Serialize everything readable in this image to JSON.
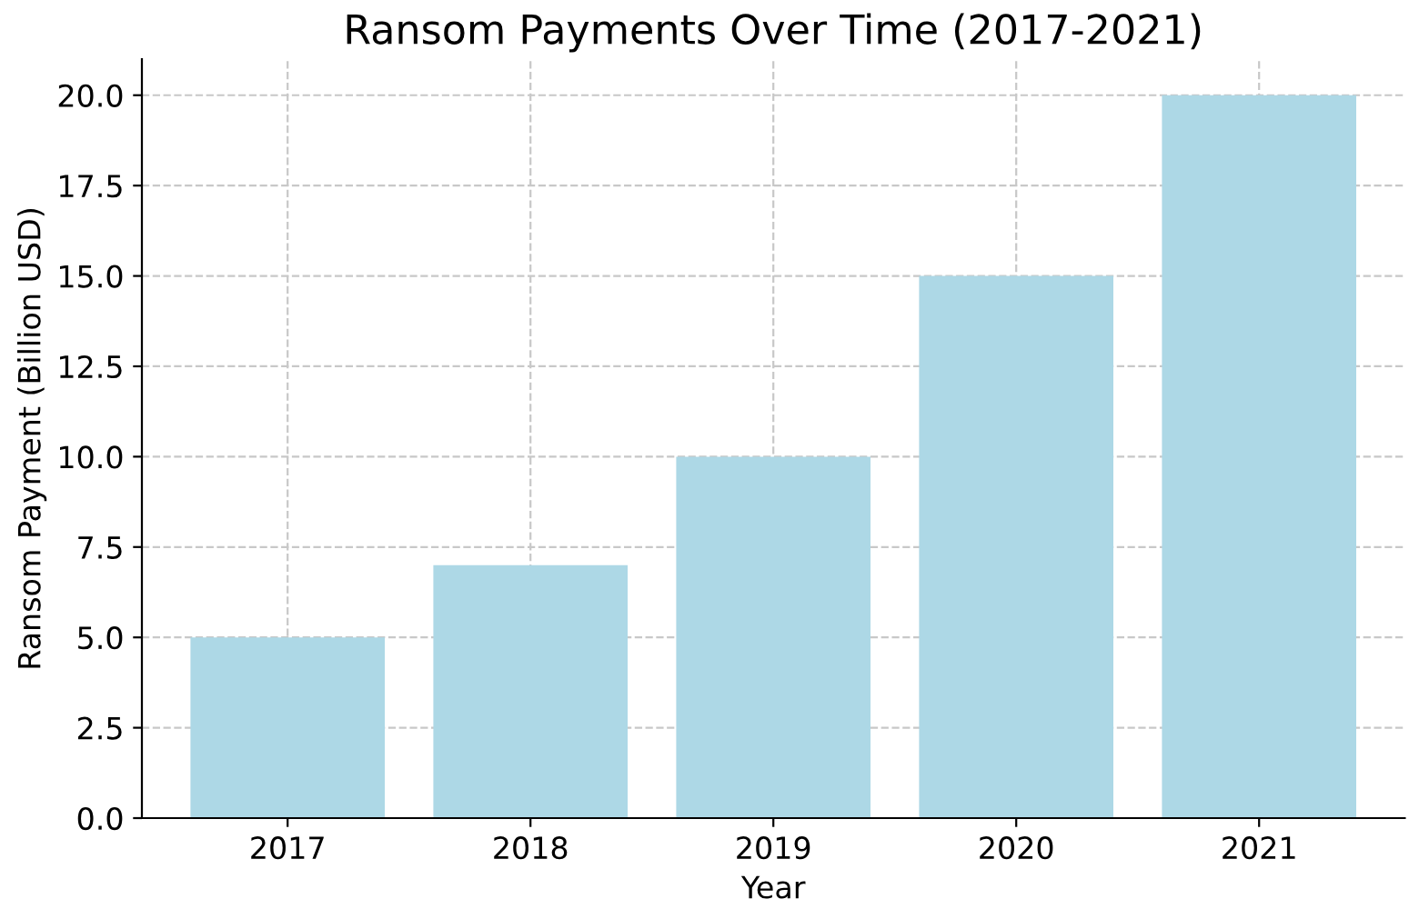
{
  "chart_data": {
    "type": "bar",
    "title": "Ransom Payments Over Time (2017-2021)",
    "xlabel": "Year",
    "ylabel": "Ransom Payment (Billion USD)",
    "categories": [
      "2017",
      "2018",
      "2019",
      "2020",
      "2021"
    ],
    "values": [
      5,
      7,
      10,
      15,
      20
    ],
    "color": "#add8e6",
    "ylim": [
      0,
      21
    ],
    "yticks": [
      {
        "value": 0,
        "label": "0.0"
      },
      {
        "value": 2.5,
        "label": "2.5"
      },
      {
        "value": 5,
        "label": "5.0"
      },
      {
        "value": 7.5,
        "label": "7.5"
      },
      {
        "value": 10,
        "label": "10.0"
      },
      {
        "value": 12.5,
        "label": "12.5"
      },
      {
        "value": 15,
        "label": "15.0"
      },
      {
        "value": 17.5,
        "label": "17.5"
      },
      {
        "value": 20,
        "label": "20.0"
      }
    ],
    "grid": true
  }
}
